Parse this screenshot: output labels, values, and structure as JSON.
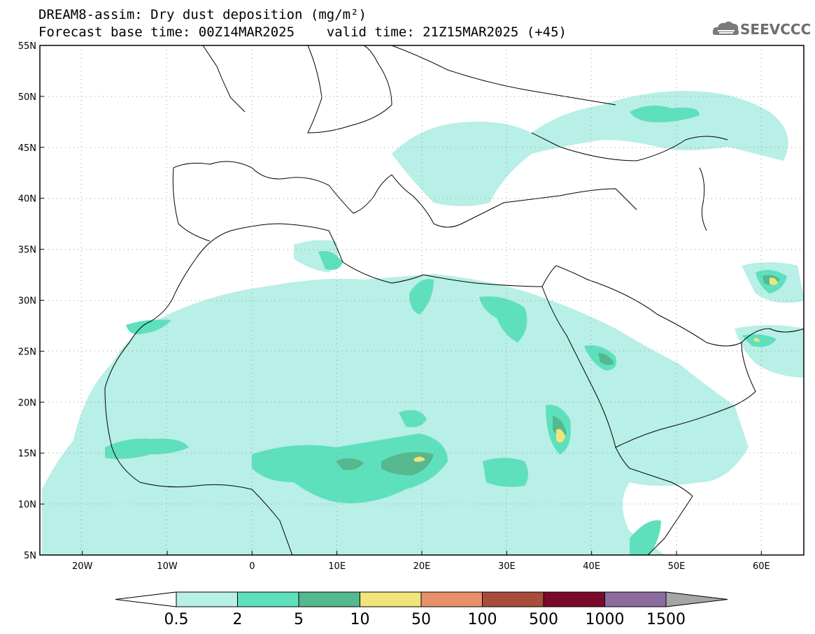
{
  "title": {
    "line1": "DREAM8-assim: Dry dust deposition (mg/m²)",
    "line2": "Forecast base time: 00Z14MAR2025    valid time: 21Z15MAR2025 (+45)"
  },
  "logo": {
    "text": "SEEVCCC"
  },
  "axes": {
    "lat_labels": [
      "55N",
      "50N",
      "45N",
      "40N",
      "35N",
      "30N",
      "25N",
      "20N",
      "15N",
      "10N",
      "5N"
    ],
    "lat_values": [
      55,
      50,
      45,
      40,
      35,
      30,
      25,
      20,
      15,
      10,
      5
    ],
    "lon_labels": [
      "20W",
      "10W",
      "0",
      "10E",
      "20E",
      "30E",
      "40E",
      "50E",
      "60E"
    ],
    "lon_values": [
      -20,
      -10,
      0,
      10,
      20,
      30,
      40,
      50,
      60
    ],
    "lon_range": [
      -25,
      65
    ],
    "lat_range": [
      5,
      55
    ],
    "grid": "dotted"
  },
  "colorbar": {
    "labels": [
      "0.5",
      "2",
      "5",
      "10",
      "50",
      "100",
      "500",
      "1000",
      "1500"
    ],
    "colors": [
      "#ffffff",
      "#b8efe6",
      "#5fe0bd",
      "#55b88f",
      "#f0e57a",
      "#e8906a",
      "#a84c3c",
      "#7a0a2a",
      "#8c6c9e",
      "#a6a6a6"
    ]
  }
}
